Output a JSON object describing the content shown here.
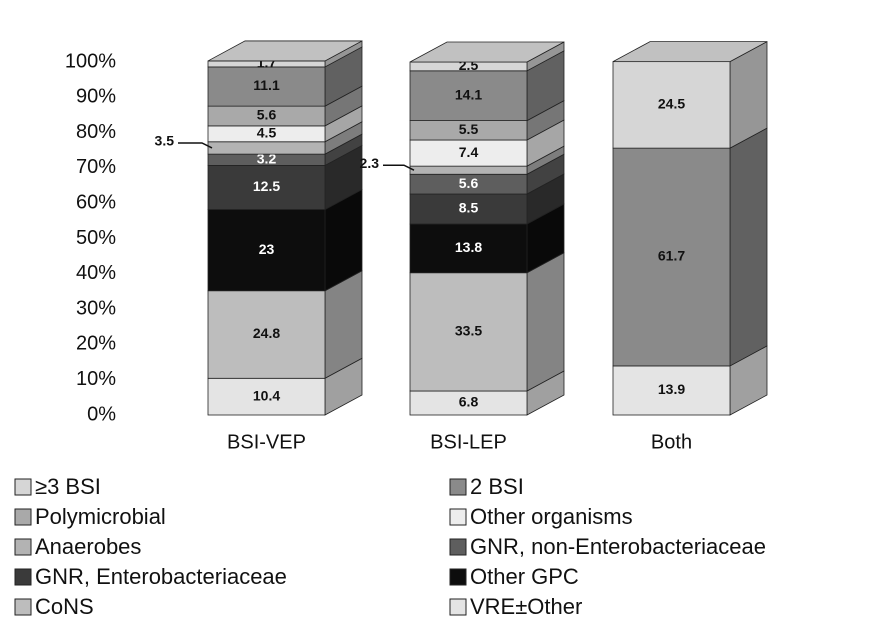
{
  "chart_data": {
    "type": "bar",
    "stacked": true,
    "three_d": true,
    "categories": [
      "BSI-VEP",
      "BSI-LEP",
      "Both"
    ],
    "ylim": [
      0,
      100
    ],
    "yticks": [
      {
        "value": 0,
        "label": "0%"
      },
      {
        "value": 10,
        "label": "10%"
      },
      {
        "value": 20,
        "label": "20%"
      },
      {
        "value": 30,
        "label": "30%"
      },
      {
        "value": 40,
        "label": "40%"
      },
      {
        "value": 50,
        "label": "50%"
      },
      {
        "value": 60,
        "label": "60%"
      },
      {
        "value": 70,
        "label": "70%"
      },
      {
        "value": 80,
        "label": "80%"
      },
      {
        "value": 90,
        "label": "90%"
      },
      {
        "value": 100,
        "label": "100%"
      }
    ],
    "series": [
      {
        "name": "VRE±Other",
        "color": "#e4e4e4",
        "values": [
          10.4,
          6.8,
          13.9
        ]
      },
      {
        "name": "CoNS",
        "color": "#bdbdbd",
        "values": [
          24.8,
          33.5,
          null
        ]
      },
      {
        "name": "Other GPC",
        "color": "#0d0d0d",
        "values": [
          23,
          13.8,
          null
        ]
      },
      {
        "name": "GNR, Enterobacteriaceae",
        "color": "#3a3a3a",
        "values": [
          12.5,
          8.5,
          null
        ]
      },
      {
        "name": "GNR, non-Enterobacteriaceae",
        "color": "#5e5e5e",
        "values": [
          3.2,
          5.6,
          null
        ]
      },
      {
        "name": "Anaerobes",
        "color": "#b3b3b3",
        "values": [
          3.5,
          2.3,
          null
        ]
      },
      {
        "name": "Other organisms",
        "color": "#ededed",
        "values": [
          4.5,
          7.4,
          null
        ]
      },
      {
        "name": "Polymicrobial",
        "color": "#a9a9a9",
        "values": [
          5.6,
          5.5,
          null
        ]
      },
      {
        "name": "2 BSI",
        "color": "#8a8a8a",
        "values": [
          11.1,
          14.1,
          61.7
        ]
      },
      {
        "name": "≥3 BSI",
        "color": "#d6d6d6",
        "values": [
          1.7,
          2.5,
          24.5
        ]
      }
    ]
  }
}
